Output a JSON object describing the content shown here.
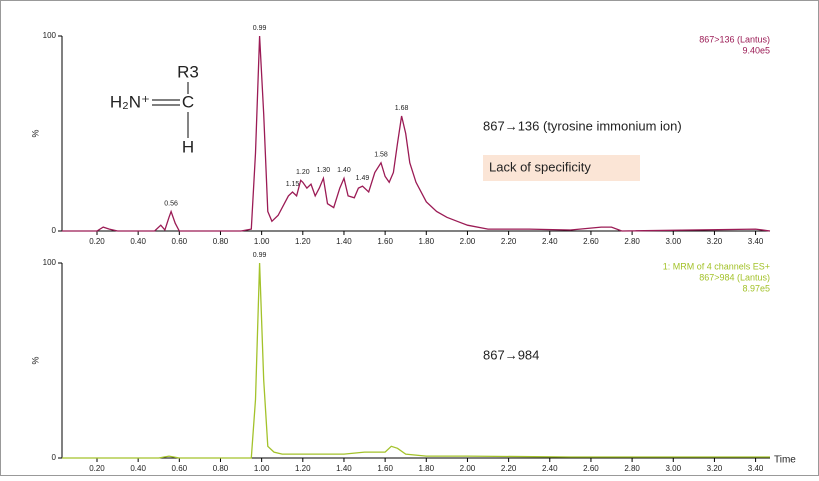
{
  "chart_data": [
    {
      "type": "line",
      "xticks": [
        {
          "value": 0.2,
          "label": "0.20"
        },
        {
          "value": 0.4,
          "label": "0.40"
        },
        {
          "value": 0.6,
          "label": "0.60"
        },
        {
          "value": 0.8,
          "label": "0.80"
        },
        {
          "value": 1.0,
          "label": "1.00"
        },
        {
          "value": 1.2,
          "label": "1.20"
        },
        {
          "value": 1.4,
          "label": "1.40"
        },
        {
          "value": 1.6,
          "label": "1.60"
        },
        {
          "value": 1.8,
          "label": "1.80"
        },
        {
          "value": 2.0,
          "label": "2.00"
        },
        {
          "value": 2.2,
          "label": "2.20"
        },
        {
          "value": 2.4,
          "label": "2.40"
        },
        {
          "value": 2.6,
          "label": "2.60"
        },
        {
          "value": 2.8,
          "label": "2.80"
        },
        {
          "value": 3.0,
          "label": "3.00"
        },
        {
          "value": 3.2,
          "label": "3.20"
        },
        {
          "value": 3.4,
          "label": "3.40"
        }
      ],
      "xlim": [
        0.03,
        3.47
      ],
      "ylim": [
        0,
        100
      ],
      "yticks": [
        0,
        100
      ],
      "ylabel": "%",
      "intensity": "9.40e5",
      "x": [
        0.03,
        0.2,
        0.23,
        0.26,
        0.3,
        0.48,
        0.51,
        0.53,
        0.55,
        0.56,
        0.58,
        0.6,
        0.9,
        0.95,
        0.97,
        0.99,
        1.01,
        1.03,
        1.05,
        1.08,
        1.11,
        1.13,
        1.15,
        1.17,
        1.19,
        1.2,
        1.22,
        1.24,
        1.26,
        1.28,
        1.3,
        1.32,
        1.35,
        1.38,
        1.4,
        1.42,
        1.45,
        1.47,
        1.49,
        1.52,
        1.55,
        1.58,
        1.6,
        1.62,
        1.64,
        1.66,
        1.68,
        1.7,
        1.72,
        1.75,
        1.8,
        1.85,
        1.9,
        1.95,
        2.0,
        2.1,
        2.3,
        2.5,
        2.65,
        2.7,
        2.75,
        3.4,
        3.47
      ],
      "series": [
        {
          "name": "867>136 (Lantus)",
          "color": "#9b1b55",
          "values": [
            0,
            0,
            2,
            1,
            0,
            0,
            3,
            0.5,
            7,
            10,
            4,
            0,
            0,
            1,
            40,
            100,
            60,
            10,
            5,
            8,
            14,
            18,
            20,
            18,
            26,
            25,
            22,
            24,
            18,
            22,
            27,
            14,
            12,
            22,
            27,
            18,
            17,
            22,
            23,
            20,
            30,
            35,
            28,
            25,
            30,
            45,
            59,
            50,
            35,
            25,
            15,
            10,
            7,
            5,
            3,
            1,
            1,
            0.5,
            2,
            2,
            0,
            1,
            0
          ]
        }
      ],
      "peaks": [
        0.56,
        0.99,
        1.15,
        {
          "value": 1.2,
          "label": "1.20"
        },
        {
          "value": 1.3,
          "label": "1.30"
        },
        {
          "value": 1.4,
          "label": "1.40"
        },
        1.49,
        1.58,
        1.68
      ],
      "annotations": [
        "867→136 (tyrosine immonium ion)",
        "Lack of specificity"
      ],
      "structure": {
        "top": "R3",
        "left": "H₂N⁺",
        "center": "C",
        "bottom": "H"
      }
    },
    {
      "type": "line",
      "xticks": [
        {
          "value": 0.2,
          "label": "0.20"
        },
        {
          "value": 0.4,
          "label": "0.40"
        },
        {
          "value": 0.6,
          "label": "0.60"
        },
        {
          "value": 0.8,
          "label": "0.80"
        },
        {
          "value": 1.0,
          "label": "1.00"
        },
        {
          "value": 1.2,
          "label": "1.20"
        },
        {
          "value": 1.4,
          "label": "1.40"
        },
        {
          "value": 1.6,
          "label": "1.60"
        },
        {
          "value": 1.8,
          "label": "1.80"
        },
        {
          "value": 2.0,
          "label": "2.00"
        },
        {
          "value": 2.2,
          "label": "2.20"
        },
        {
          "value": 2.4,
          "label": "2.40"
        },
        {
          "value": 2.6,
          "label": "2.60"
        },
        {
          "value": 2.8,
          "label": "2.80"
        },
        {
          "value": 3.0,
          "label": "3.00"
        },
        {
          "value": 3.2,
          "label": "3.20"
        },
        {
          "value": 3.4,
          "label": "3.40"
        }
      ],
      "xlim": [
        0.03,
        3.47
      ],
      "ylim": [
        0,
        100
      ],
      "yticks": [
        0,
        100
      ],
      "ylabel": "%",
      "xlabel": "Time",
      "channel": "1: MRM of 4 channels ES+",
      "intensity": "8.97e5",
      "x": [
        0.03,
        0.5,
        0.55,
        0.6,
        0.95,
        0.97,
        0.99,
        1.01,
        1.03,
        1.06,
        1.1,
        1.2,
        1.4,
        1.5,
        1.6,
        1.63,
        1.66,
        1.7,
        1.8,
        2.0,
        2.5,
        3.47
      ],
      "series": [
        {
          "name": "867>984 (Lantus)",
          "color": "#a3c22a",
          "values": [
            0,
            0,
            1,
            0,
            0,
            30,
            100,
            40,
            6,
            3,
            2,
            2,
            2,
            3,
            3,
            6,
            5,
            2,
            1,
            1,
            0.5,
            0.5
          ]
        }
      ],
      "peaks": [
        0.99
      ],
      "annotations": [
        "867→984"
      ]
    }
  ]
}
